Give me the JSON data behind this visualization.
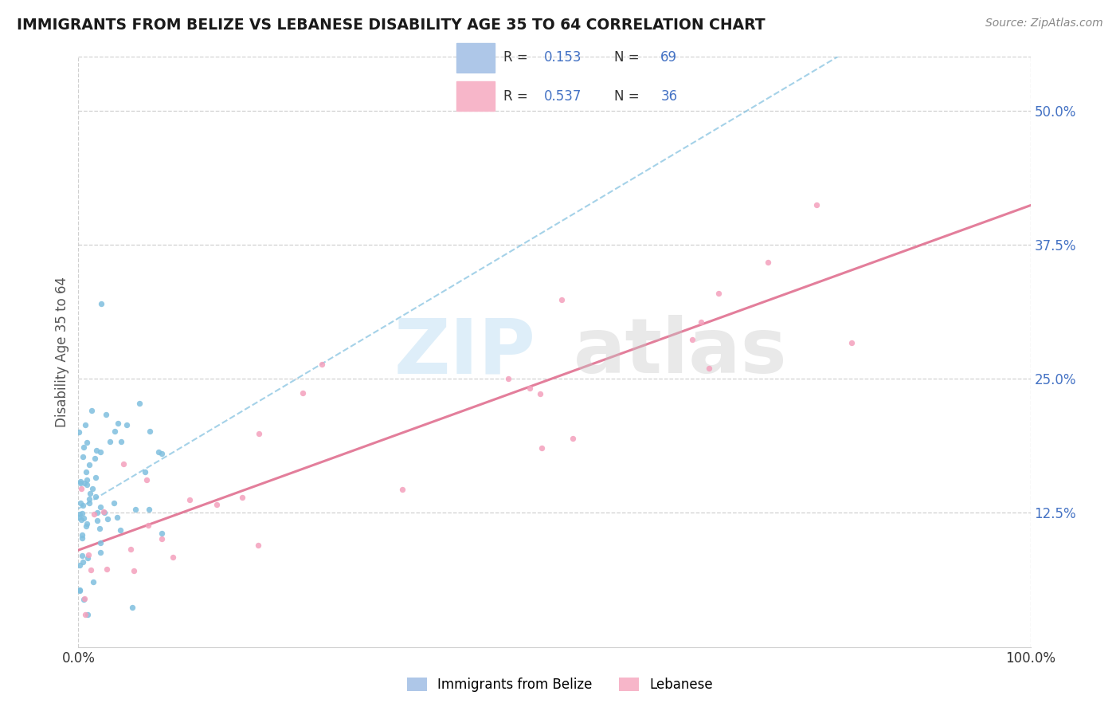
{
  "title": "IMMIGRANTS FROM BELIZE VS LEBANESE DISABILITY AGE 35 TO 64 CORRELATION CHART",
  "source": "Source: ZipAtlas.com",
  "ylabel": "Disability Age 35 to 64",
  "xlim": [
    0,
    1.0
  ],
  "ylim": [
    0,
    0.55
  ],
  "ytick_positions": [
    0.125,
    0.25,
    0.375,
    0.5
  ],
  "ytick_labels": [
    "12.5%",
    "25.0%",
    "37.5%",
    "50.0%"
  ],
  "xtick_labels": [
    "0.0%",
    "100.0%"
  ],
  "xtick_positions": [
    0.0,
    1.0
  ],
  "belize_color": "#7fbfdf",
  "belize_patch_color": "#aec7e8",
  "lebanese_color": "#f4a0bc",
  "lebanese_patch_color": "#f7b6c9",
  "belize_trend_color": "#7fbfdf",
  "lebanese_trend_color": "#e07090",
  "belize_R": 0.153,
  "belize_N": 69,
  "lebanese_R": 0.537,
  "lebanese_N": 36,
  "watermark_zip_color": "#c8e4f5",
  "watermark_atlas_color": "#c8c8c8",
  "grid_color": "#d0d0d0",
  "title_color": "#1a1a1a",
  "source_color": "#888888",
  "tick_color": "#4472c4",
  "legend_labels": [
    "Immigrants from Belize",
    "Lebanese"
  ],
  "seed": 42
}
